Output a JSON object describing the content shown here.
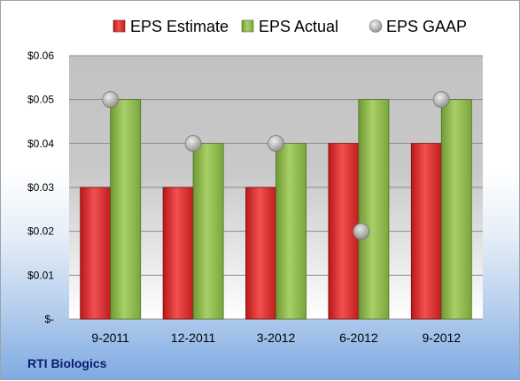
{
  "company_label": "RTI Biologics",
  "chart_data": {
    "type": "bar",
    "categories": [
      "9-2011",
      "12-2011",
      "3-2012",
      "6-2012",
      "9-2012"
    ],
    "series": [
      {
        "name": "EPS Estimate",
        "kind": "bar",
        "color": "#d92b2b",
        "values": [
          0.03,
          0.03,
          0.03,
          0.04,
          0.04
        ]
      },
      {
        "name": "EPS Actual",
        "kind": "bar",
        "color": "#8cb34a",
        "values": [
          0.05,
          0.04,
          0.04,
          0.05,
          0.05
        ]
      },
      {
        "name": "EPS GAAP",
        "kind": "marker",
        "color": "#b0b0b0",
        "values": [
          0.05,
          0.04,
          0.04,
          0.02,
          0.05
        ]
      }
    ],
    "ylim": [
      0,
      0.06
    ],
    "y_ticks": [
      {
        "value": 0,
        "label": "$-"
      },
      {
        "value": 0.01,
        "label": "$0.01"
      },
      {
        "value": 0.02,
        "label": "$0.02"
      },
      {
        "value": 0.03,
        "label": "$0.03"
      },
      {
        "value": 0.04,
        "label": "$0.04"
      },
      {
        "value": 0.05,
        "label": "$0.05"
      },
      {
        "value": 0.06,
        "label": "$0.06"
      }
    ],
    "grid": true,
    "legend_position": "top"
  }
}
